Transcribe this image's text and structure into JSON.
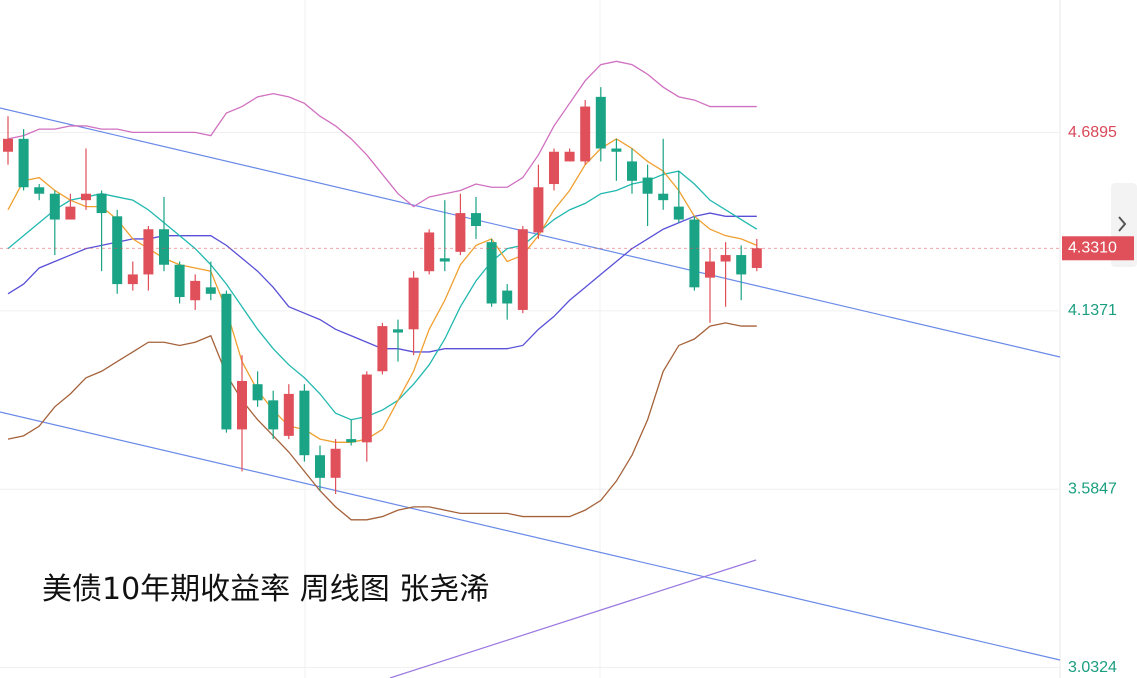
{
  "chart_data": {
    "type": "candlestick",
    "title": "美债10年期收益率 周线图 张尧浠",
    "ylim": [
      3.0,
      5.1
    ],
    "yticks": [
      4.6895,
      4.1371,
      3.5847,
      3.0324
    ],
    "ytick_colors": [
      "#d9485a",
      "#1a9e80",
      "#1a9e80",
      "#1a9e80"
    ],
    "grid": true,
    "up_color": "#e0505a",
    "down_color": "#1aa385",
    "last_price": {
      "value": 4.331,
      "label": "4.3310"
    },
    "last_price_color": "#e0505a",
    "candles": [
      {
        "open": 4.63,
        "high": 4.74,
        "low": 4.59,
        "close": 4.67
      },
      {
        "open": 4.67,
        "high": 4.7,
        "low": 4.51,
        "close": 4.52
      },
      {
        "open": 4.52,
        "high": 4.53,
        "low": 4.48,
        "close": 4.5
      },
      {
        "open": 4.5,
        "high": 4.51,
        "low": 4.31,
        "close": 4.42
      },
      {
        "open": 4.42,
        "high": 4.5,
        "low": 4.42,
        "close": 4.46
      },
      {
        "open": 4.48,
        "high": 4.64,
        "low": 4.45,
        "close": 4.5
      },
      {
        "open": 4.5,
        "high": 4.51,
        "low": 4.26,
        "close": 4.44
      },
      {
        "open": 4.43,
        "high": 4.45,
        "low": 4.19,
        "close": 4.22
      },
      {
        "open": 4.22,
        "high": 4.29,
        "low": 4.2,
        "close": 4.25
      },
      {
        "open": 4.25,
        "high": 4.4,
        "low": 4.2,
        "close": 4.39
      },
      {
        "open": 4.39,
        "high": 4.49,
        "low": 4.26,
        "close": 4.28
      },
      {
        "open": 4.28,
        "high": 4.29,
        "low": 4.16,
        "close": 4.18
      },
      {
        "open": 4.17,
        "high": 4.25,
        "low": 4.14,
        "close": 4.23
      },
      {
        "open": 4.21,
        "high": 4.29,
        "low": 4.17,
        "close": 4.19
      },
      {
        "open": 4.19,
        "high": 4.2,
        "low": 3.76,
        "close": 3.77
      },
      {
        "open": 3.77,
        "high": 4.0,
        "low": 3.64,
        "close": 3.92
      },
      {
        "open": 3.91,
        "high": 3.95,
        "low": 3.84,
        "close": 3.86
      },
      {
        "open": 3.86,
        "high": 3.89,
        "low": 3.74,
        "close": 3.77
      },
      {
        "open": 3.75,
        "high": 3.91,
        "low": 3.74,
        "close": 3.88
      },
      {
        "open": 3.89,
        "high": 3.91,
        "low": 3.67,
        "close": 3.69
      },
      {
        "open": 3.69,
        "high": 3.72,
        "low": 3.58,
        "close": 3.62
      },
      {
        "open": 3.62,
        "high": 3.74,
        "low": 3.57,
        "close": 3.71
      },
      {
        "open": 3.74,
        "high": 3.8,
        "low": 3.72,
        "close": 3.73
      },
      {
        "open": 3.73,
        "high": 3.95,
        "low": 3.67,
        "close": 3.94
      },
      {
        "open": 3.95,
        "high": 4.1,
        "low": 3.94,
        "close": 4.09
      },
      {
        "open": 4.08,
        "high": 4.11,
        "low": 3.98,
        "close": 4.07
      },
      {
        "open": 4.08,
        "high": 4.26,
        "low": 4.0,
        "close": 4.24
      },
      {
        "open": 4.26,
        "high": 4.39,
        "low": 4.25,
        "close": 4.38
      },
      {
        "open": 4.3,
        "high": 4.48,
        "low": 4.26,
        "close": 4.29
      },
      {
        "open": 4.32,
        "high": 4.5,
        "low": 4.31,
        "close": 4.44
      },
      {
        "open": 4.44,
        "high": 4.49,
        "low": 4.36,
        "close": 4.4
      },
      {
        "open": 4.35,
        "high": 4.36,
        "low": 4.15,
        "close": 4.16
      },
      {
        "open": 4.2,
        "high": 4.22,
        "low": 4.11,
        "close": 4.16
      },
      {
        "open": 4.14,
        "high": 4.4,
        "low": 4.13,
        "close": 4.39
      },
      {
        "open": 4.38,
        "high": 4.59,
        "low": 4.36,
        "close": 4.52
      },
      {
        "open": 4.53,
        "high": 4.64,
        "low": 4.51,
        "close": 4.63
      },
      {
        "open": 4.6,
        "high": 4.64,
        "low": 4.6,
        "close": 4.63
      },
      {
        "open": 4.6,
        "high": 4.79,
        "low": 4.59,
        "close": 4.77
      },
      {
        "open": 4.8,
        "high": 4.83,
        "low": 4.6,
        "close": 4.64
      },
      {
        "open": 4.64,
        "high": 4.67,
        "low": 4.54,
        "close": 4.63
      },
      {
        "open": 4.6,
        "high": 4.64,
        "low": 4.5,
        "close": 4.54
      },
      {
        "open": 4.55,
        "high": 4.59,
        "low": 4.4,
        "close": 4.5
      },
      {
        "open": 4.5,
        "high": 4.67,
        "low": 4.45,
        "close": 4.48
      },
      {
        "open": 4.46,
        "high": 4.57,
        "low": 4.41,
        "close": 4.42
      },
      {
        "open": 4.42,
        "high": 4.43,
        "low": 4.2,
        "close": 4.21
      },
      {
        "open": 4.24,
        "high": 4.33,
        "low": 4.1,
        "close": 4.29
      },
      {
        "open": 4.29,
        "high": 4.35,
        "low": 4.15,
        "close": 4.31
      },
      {
        "open": 4.31,
        "high": 4.34,
        "low": 4.17,
        "close": 4.25
      },
      {
        "open": 4.27,
        "high": 4.36,
        "low": 4.26,
        "close": 4.331
      }
    ],
    "lines": [
      {
        "color": "#d070c0",
        "values": [
          4.67,
          4.68,
          4.7,
          4.7,
          4.71,
          4.71,
          4.7,
          4.7,
          4.69,
          4.69,
          4.69,
          4.69,
          4.69,
          4.68,
          4.75,
          4.77,
          4.8,
          4.81,
          4.8,
          4.78,
          4.74,
          4.71,
          4.67,
          4.62,
          4.56,
          4.5,
          4.46,
          4.49,
          4.5,
          4.51,
          4.53,
          4.52,
          4.52,
          4.55,
          4.62,
          4.71,
          4.78,
          4.85,
          4.9,
          4.91,
          4.9,
          4.87,
          4.83,
          4.8,
          4.79,
          4.77,
          4.77,
          4.77,
          4.77
        ]
      },
      {
        "color": "#5a50d8",
        "values": [
          4.19,
          4.22,
          4.27,
          4.29,
          4.31,
          4.33,
          4.34,
          4.35,
          4.36,
          4.36,
          4.37,
          4.37,
          4.37,
          4.37,
          4.34,
          4.3,
          4.26,
          4.21,
          4.15,
          4.13,
          4.11,
          4.08,
          4.06,
          4.04,
          4.02,
          4.02,
          4.01,
          4.01,
          4.02,
          4.02,
          4.02,
          4.02,
          4.02,
          4.03,
          4.08,
          4.12,
          4.17,
          4.21,
          4.25,
          4.29,
          4.33,
          4.36,
          4.39,
          4.41,
          4.43,
          4.44,
          4.43,
          4.43,
          4.43
        ]
      },
      {
        "color": "#a5623a",
        "values": [
          3.74,
          3.75,
          3.78,
          3.84,
          3.88,
          3.93,
          3.95,
          3.98,
          4.01,
          4.04,
          4.04,
          4.03,
          4.04,
          4.06,
          3.94,
          3.86,
          3.8,
          3.75,
          3.7,
          3.64,
          3.58,
          3.53,
          3.49,
          3.49,
          3.5,
          3.52,
          3.53,
          3.53,
          3.52,
          3.51,
          3.51,
          3.51,
          3.51,
          3.5,
          3.5,
          3.5,
          3.5,
          3.52,
          3.55,
          3.61,
          3.69,
          3.8,
          3.95,
          4.03,
          4.05,
          4.09,
          4.1,
          4.09,
          4.09
        ]
      },
      {
        "color": "#22b8b0",
        "values": [
          4.33,
          4.37,
          4.41,
          4.45,
          4.48,
          4.49,
          4.5,
          4.49,
          4.48,
          4.45,
          4.41,
          4.37,
          4.33,
          4.28,
          4.22,
          4.15,
          4.08,
          4.02,
          3.97,
          3.93,
          3.88,
          3.82,
          3.8,
          3.81,
          3.83,
          3.86,
          3.91,
          3.97,
          4.05,
          4.15,
          4.23,
          4.29,
          4.33,
          4.34,
          4.38,
          4.42,
          4.45,
          4.47,
          4.5,
          4.51,
          4.53,
          4.54,
          4.56,
          4.57,
          4.53,
          4.48,
          4.45,
          4.42,
          4.39
        ]
      },
      {
        "color": "#f0a030",
        "values": [
          4.45,
          4.54,
          4.55,
          4.51,
          4.48,
          4.46,
          4.46,
          4.42,
          4.36,
          4.33,
          4.3,
          4.28,
          4.27,
          4.26,
          4.14,
          3.98,
          3.89,
          3.83,
          3.78,
          3.77,
          3.74,
          3.73,
          3.73,
          3.74,
          3.77,
          3.86,
          3.95,
          4.08,
          4.17,
          4.28,
          4.34,
          4.36,
          4.29,
          4.31,
          4.37,
          4.45,
          4.51,
          4.59,
          4.64,
          4.67,
          4.64,
          4.6,
          4.57,
          4.51,
          4.43,
          4.39,
          4.37,
          4.36,
          4.34
        ]
      }
    ]
  }
}
